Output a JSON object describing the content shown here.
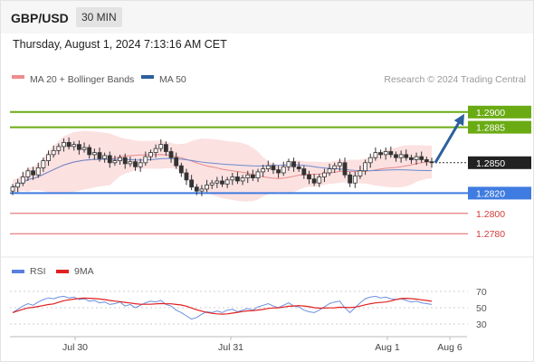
{
  "header": {
    "pair": "GBP/USD",
    "timeframe": "30 MIN",
    "datetime": "Thursday, August 1, 2024 7:13:16 AM CET"
  },
  "legend": {
    "ma20_label": "MA 20 + Bollinger Bands",
    "ma50_label": "MA 50",
    "credit": "Research © 2024 Trading Central",
    "rsi_label": "RSI",
    "ma9_label": "9MA"
  },
  "colors": {
    "resistance": "#6aab13",
    "support": "#3f7be0",
    "level": "#e06060",
    "current": "#222222",
    "arrow": "#2c5f9e",
    "candle": "#333333",
    "bollinger": "#fbdcdc",
    "ma20": "#e88a8a",
    "ma50": "#6a8ad0",
    "rsi": "#6b8fe0",
    "ma9": "#e02020"
  },
  "chart_data": {
    "type": "candlestick",
    "y_range": [
      1.2765,
      1.2915
    ],
    "levels": [
      {
        "value": 1.29,
        "label": "1.2900",
        "kind": "resistance"
      },
      {
        "value": 1.2885,
        "label": "1.2885",
        "kind": "resistance"
      },
      {
        "value": 1.285,
        "label": "1.2850",
        "kind": "current"
      },
      {
        "value": 1.282,
        "label": "1.2820",
        "kind": "support"
      },
      {
        "value": 1.28,
        "label": "1.2800",
        "kind": "level"
      },
      {
        "value": 1.278,
        "label": "1.2780",
        "kind": "level"
      }
    ],
    "x_labels": [
      "Jul 30",
      "Jul 31",
      "Aug 1",
      "Aug 6"
    ],
    "rsi": {
      "ticks": [
        70,
        50,
        30
      ],
      "range": [
        20,
        80
      ]
    },
    "close_series": [
      1.2826,
      1.283,
      1.2836,
      1.2842,
      1.2838,
      1.2845,
      1.2852,
      1.2858,
      1.2862,
      1.2866,
      1.287,
      1.2866,
      1.2868,
      1.2863,
      1.2865,
      1.2858,
      1.286,
      1.2854,
      1.2857,
      1.285,
      1.2852,
      1.2855,
      1.2849,
      1.2851,
      1.2846,
      1.285,
      1.2856,
      1.286,
      1.2864,
      1.2868,
      1.2861,
      1.2855,
      1.2847,
      1.284,
      1.2833,
      1.2826,
      1.2822,
      1.2824,
      1.2828,
      1.283,
      1.2832,
      1.2829,
      1.2833,
      1.2836,
      1.2832,
      1.2835,
      1.2838,
      1.2835,
      1.2841,
      1.2844,
      1.2847,
      1.2843,
      1.284,
      1.2846,
      1.2851,
      1.2846,
      1.2844,
      1.2838,
      1.2834,
      1.283,
      1.2836,
      1.284,
      1.2844,
      1.2847,
      1.285,
      1.2838,
      1.283,
      1.2837,
      1.2842,
      1.285,
      1.2855,
      1.286,
      1.2858,
      1.2861,
      1.2858,
      1.2855,
      1.2858,
      1.2855,
      1.2853,
      1.2856,
      1.2853,
      1.2851,
      1.285
    ],
    "rsi_series": [
      44,
      48,
      52,
      55,
      53,
      57,
      60,
      62,
      61,
      63,
      64,
      62,
      63,
      60,
      61,
      58,
      59,
      56,
      57,
      54,
      55,
      57,
      52,
      54,
      50,
      53,
      56,
      58,
      57,
      59,
      54,
      52,
      47,
      44,
      40,
      36,
      38,
      42,
      45,
      44,
      46,
      44,
      47,
      48,
      45,
      47,
      49,
      47,
      51,
      53,
      55,
      52,
      50,
      53,
      56,
      52,
      51,
      47,
      45,
      44,
      47,
      51,
      55,
      57,
      58,
      50,
      44,
      50,
      56,
      61,
      63,
      64,
      62,
      63,
      61,
      60,
      61,
      59,
      57,
      58,
      56,
      55,
      54
    ]
  }
}
